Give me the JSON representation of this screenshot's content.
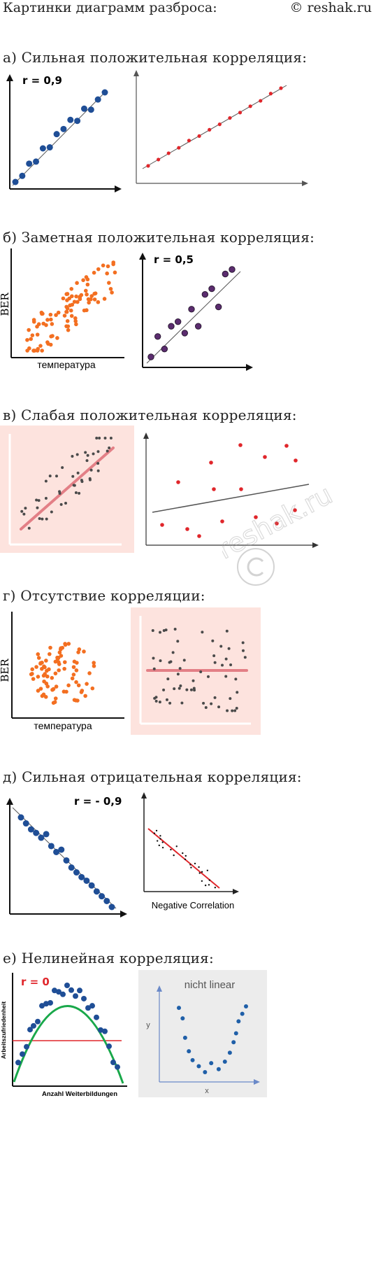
{
  "header": {
    "left": "Картинки диаграмм разброса:",
    "right": "© reshak.ru"
  },
  "sections": [
    {
      "title": "а) Сильная положительная корреляция:"
    },
    {
      "title": "б) Заметная положительная корреляция:"
    },
    {
      "title": "в) Слабая положительная корреляция:"
    },
    {
      "title": "г) Отсутствие корреляции:"
    },
    {
      "title": "д) Сильная отрицательная корреляция:"
    },
    {
      "title": "е) Нелинейная корреляция:"
    }
  ],
  "labels": {
    "r09": "r = 0,9",
    "r05": "r = 0,5",
    "rneg09": "r = - 0,9",
    "r0": "r = 0",
    "ber": "BER",
    "temperature": "температура",
    "negative_correlation": "Negative Correlation",
    "arbeitszufriedenheit": "Arbeitszufriedenheit",
    "anzahl": "Anzahl Weiterbildungen",
    "nicht_linear": "nicht linear",
    "x": "x",
    "y": "y"
  },
  "watermark": "reshak.ru",
  "colors": {
    "blue": "#1f4e96",
    "red": "#e0262b",
    "orange": "#f36f21",
    "purple": "#5b2c6f",
    "gray": "#4a4a4a",
    "pink_bg": "#fde3de",
    "pink_line": "#e37f86",
    "green": "#19a84a",
    "light_gray_bg": "#ececec",
    "steel_blue": "#1f5fa8"
  },
  "chart_data": [
    {
      "type": "scatter",
      "label": "r = 0,9",
      "series": [
        {
          "x": [
            1,
            2,
            3,
            4,
            5,
            6,
            7,
            8,
            9,
            10,
            11,
            12,
            13,
            14
          ],
          "y": [
            1.2,
            1.8,
            3.0,
            3.2,
            4.5,
            4.6,
            5.9,
            6.4,
            7.3,
            7.2,
            8.4,
            8.3,
            9.3,
            10.0
          ]
        }
      ]
    },
    {
      "type": "scatter",
      "series": [
        {
          "x": [
            1,
            2,
            3,
            4,
            5,
            6,
            7,
            8,
            9,
            10,
            11,
            12,
            13,
            14
          ],
          "y": [
            1.5,
            2.2,
            2.9,
            3.5,
            4.3,
            4.8,
            5.5,
            6.1,
            6.8,
            7.4,
            8.1,
            8.7,
            9.5,
            10.1
          ]
        }
      ]
    },
    {
      "type": "scatter",
      "xlabel": "температура",
      "ylabel": "BER"
    },
    {
      "type": "scatter",
      "label": "r = 0,5",
      "series": [
        {
          "x": [
            1,
            2,
            3,
            4,
            5,
            6,
            7,
            8,
            9,
            10,
            11,
            12,
            13
          ],
          "y": [
            1.3,
            3.1,
            2.0,
            4.0,
            4.4,
            3.4,
            5.5,
            4.0,
            6.8,
            7.3,
            5.7,
            8.6,
            9.0
          ]
        }
      ]
    },
    {
      "type": "scatter"
    },
    {
      "type": "scatter"
    },
    {
      "type": "scatter",
      "xlabel": "температура",
      "ylabel": "BER"
    },
    {
      "type": "scatter"
    },
    {
      "type": "scatter",
      "label": "r = - 0,9",
      "series": [
        {
          "x": [
            1,
            2,
            3,
            4,
            5,
            6,
            7,
            8,
            9,
            10,
            11,
            12,
            13,
            14,
            15,
            16,
            17,
            18,
            19
          ],
          "y": [
            9.6,
            9.1,
            8.6,
            8.3,
            7.9,
            8.2,
            7.2,
            6.7,
            6.9,
            6.0,
            5.4,
            5.0,
            4.6,
            4.3,
            3.9,
            3.4,
            3.0,
            2.6,
            2.1
          ]
        }
      ]
    },
    {
      "type": "scatter",
      "xlabel": "Negative Correlation"
    },
    {
      "type": "scatter",
      "label": "r = 0",
      "xlabel": "Anzahl Weiterbildungen",
      "ylabel": "Arbeitszufriedenheit"
    },
    {
      "type": "scatter",
      "title": "nicht linear",
      "xlabel": "x",
      "ylabel": "y",
      "series": [
        {
          "x": [
            1.0,
            1.3,
            1.5,
            1.8,
            2.1,
            2.6,
            3.1,
            3.6,
            4.2,
            4.7,
            5.1,
            5.4,
            5.6,
            5.8,
            6.1,
            6.4
          ],
          "y": [
            6.5,
            5.8,
            4.5,
            3.6,
            3.0,
            2.6,
            2.2,
            2.8,
            2.4,
            2.9,
            3.5,
            4.2,
            4.8,
            5.6,
            6.1,
            6.6
          ]
        }
      ]
    }
  ]
}
